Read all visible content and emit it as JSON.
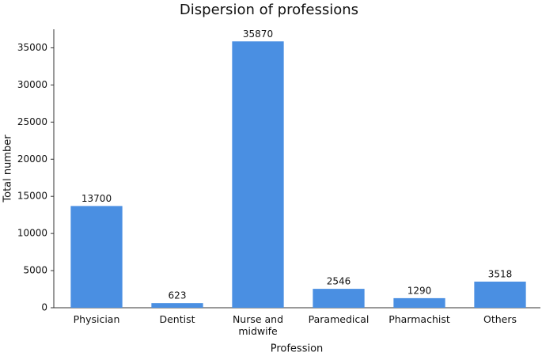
{
  "chart_data": {
    "type": "bar",
    "title": "Dispersion of professions",
    "x_label": "Profession",
    "y_label": "Total number",
    "categories": [
      "Physician",
      "Dentist",
      "Nurse and midwife",
      "Paramedical",
      "Pharmachist",
      "Others"
    ],
    "values": [
      13700,
      623,
      35870,
      2546,
      1290,
      3518
    ],
    "color": "#4a8fe2",
    "ylim": [
      0,
      37500
    ],
    "yticks": [
      0,
      5000,
      10000,
      15000,
      20000,
      25000,
      30000,
      35000
    ],
    "grid": false
  }
}
